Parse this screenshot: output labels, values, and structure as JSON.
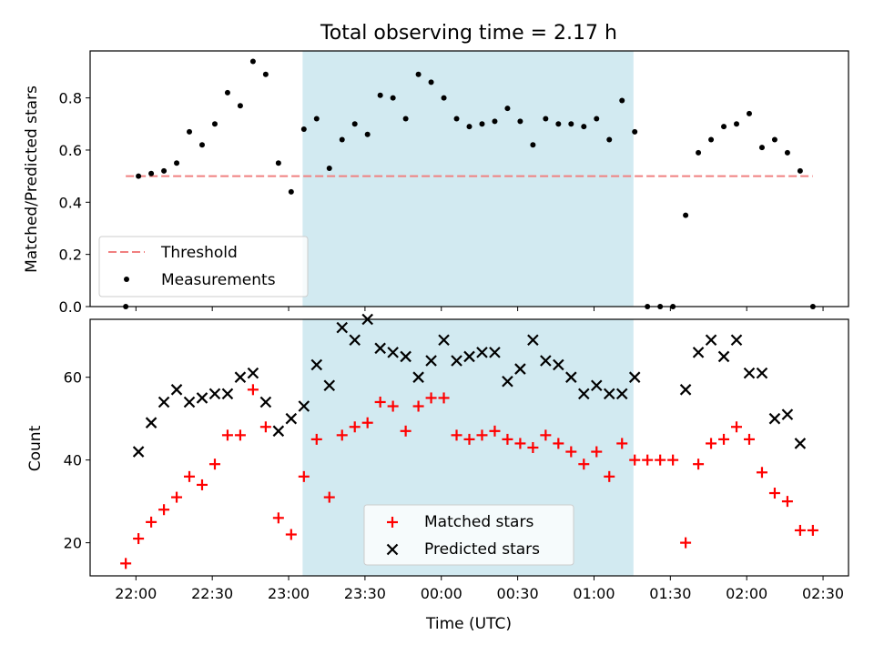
{
  "chart_data": {
    "type": "scatter",
    "title": "Total observing time = 2.17 h",
    "xlabel": "Time (UTC)",
    "x_ticks": [
      "22:00",
      "22:30",
      "23:00",
      "23:30",
      "00:00",
      "00:30",
      "01:00",
      "01:30",
      "02:00",
      "02:30"
    ],
    "x_tick_minutes": [
      0,
      30,
      60,
      90,
      120,
      150,
      180,
      210,
      240,
      270
    ],
    "xlim_minutes": [
      -18,
      280
    ],
    "highlight_span_minutes": [
      65.5,
      195.5
    ],
    "highlight_color": "#add8e6",
    "panels": [
      {
        "name": "ratio",
        "ylabel": "Matched/Predicted stars",
        "ylim": [
          0,
          0.98
        ],
        "y_ticks": [
          0.0,
          0.2,
          0.4,
          0.6,
          0.8
        ],
        "y_tick_labels": [
          "0.0",
          "0.2",
          "0.4",
          "0.6",
          "0.8"
        ],
        "threshold": {
          "label": "Threshold",
          "value": 0.5,
          "x_range_minutes": [
            -4,
            266
          ],
          "color": "#f08080"
        },
        "measurements": {
          "label": "Measurements",
          "color": "#000000",
          "x_minutes": [
            -4,
            1,
            6,
            11,
            16,
            21,
            26,
            31,
            36,
            41,
            46,
            51,
            56,
            61,
            66,
            71,
            76,
            81,
            86,
            91,
            96,
            101,
            106,
            111,
            116,
            121,
            126,
            131,
            136,
            141,
            146,
            151,
            156,
            161,
            166,
            171,
            176,
            181,
            186,
            191,
            196,
            201,
            206,
            211,
            216,
            221,
            226,
            231,
            236,
            241,
            246,
            251,
            256,
            261,
            266
          ],
          "y": [
            0.0,
            0.5,
            0.51,
            0.52,
            0.55,
            0.67,
            0.62,
            0.7,
            0.82,
            0.77,
            0.94,
            0.89,
            0.55,
            0.44,
            0.68,
            0.72,
            0.53,
            0.64,
            0.7,
            0.66,
            0.81,
            0.8,
            0.72,
            0.89,
            0.86,
            0.8,
            0.72,
            0.69,
            0.7,
            0.71,
            0.76,
            0.71,
            0.62,
            0.72,
            0.7,
            0.7,
            0.69,
            0.72,
            0.64,
            0.79,
            0.67,
            0.0,
            0.0,
            0.0,
            0.35,
            0.59,
            0.64,
            0.69,
            0.7,
            0.74,
            0.61,
            0.64,
            0.59,
            0.52,
            0.0
          ]
        }
      },
      {
        "name": "count",
        "ylabel": "Count",
        "ylim": [
          12,
          74
        ],
        "y_ticks": [
          20,
          40,
          60
        ],
        "y_tick_labels": [
          "20",
          "40",
          "60"
        ],
        "series": [
          {
            "name": "Matched stars",
            "marker": "plus",
            "color": "#ff0000",
            "x_minutes": [
              -4,
              1,
              6,
              11,
              16,
              21,
              26,
              31,
              36,
              41,
              46,
              51,
              56,
              61,
              66,
              71,
              76,
              81,
              86,
              91,
              96,
              101,
              106,
              111,
              116,
              121,
              126,
              131,
              136,
              141,
              146,
              151,
              156,
              161,
              166,
              171,
              176,
              181,
              186,
              191,
              196,
              201,
              206,
              211,
              216,
              221,
              226,
              231,
              236,
              241,
              246,
              251,
              256,
              261,
              266
            ],
            "y": [
              15,
              21,
              25,
              28,
              31,
              36,
              34,
              39,
              46,
              46,
              57,
              48,
              26,
              22,
              36,
              45,
              31,
              46,
              48,
              49,
              54,
              53,
              47,
              53,
              55,
              55,
              46,
              45,
              46,
              47,
              45,
              44,
              43,
              46,
              44,
              42,
              39,
              42,
              36,
              44,
              40,
              40,
              40,
              40,
              20,
              39,
              44,
              45,
              48,
              45,
              37,
              32,
              30,
              23,
              23
            ]
          },
          {
            "name": "Predicted stars",
            "marker": "x",
            "color": "#000000",
            "x_minutes": [
              1,
              6,
              11,
              16,
              21,
              26,
              31,
              36,
              41,
              46,
              51,
              56,
              61,
              66,
              71,
              76,
              81,
              86,
              91,
              96,
              101,
              106,
              111,
              116,
              121,
              126,
              131,
              136,
              141,
              146,
              151,
              156,
              161,
              166,
              171,
              176,
              181,
              186,
              191,
              196,
              216,
              221,
              226,
              231,
              236,
              241,
              246,
              251,
              256,
              261
            ],
            "y": [
              42,
              49,
              54,
              57,
              54,
              55,
              56,
              56,
              60,
              61,
              54,
              47,
              50,
              53,
              63,
              58,
              72,
              69,
              74,
              67,
              66,
              65,
              60,
              64,
              69,
              64,
              65,
              66,
              66,
              59,
              62,
              69,
              64,
              63,
              60,
              56,
              58,
              56,
              56,
              60,
              57,
              66,
              69,
              65,
              69,
              61,
              61,
              50,
              51,
              44
            ]
          }
        ]
      }
    ]
  }
}
